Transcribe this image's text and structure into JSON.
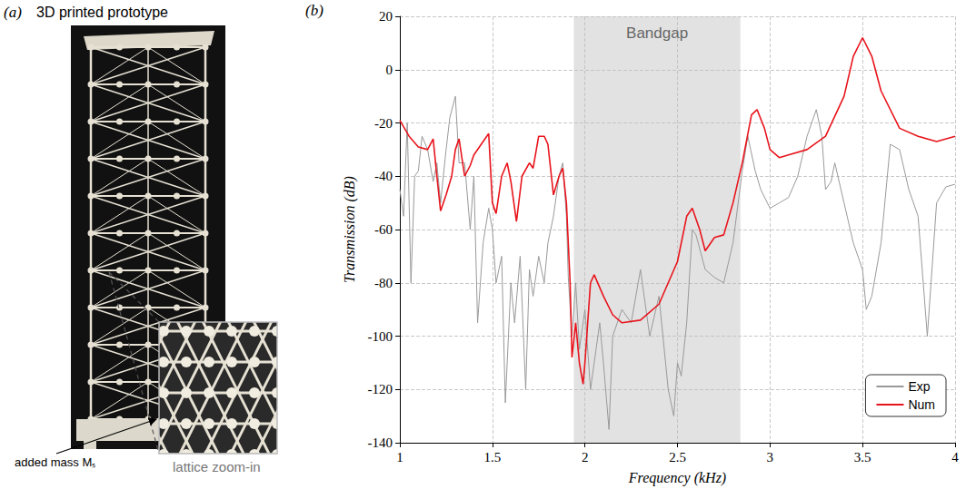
{
  "panel_a": {
    "label": "(a)",
    "title": "3D printed prototype",
    "annotations": [
      "added mass Mₛ",
      "lattice zoom-in"
    ]
  },
  "chart_data": {
    "type": "line",
    "panel": "(b)",
    "x_label": "Frequency (kHz)",
    "y_label": "Transmission (dB)",
    "xlim": [
      1,
      4
    ],
    "xticks": [
      1,
      1.5,
      2,
      2.5,
      3,
      3.5,
      4
    ],
    "ylim": [
      -140,
      20
    ],
    "yticks": [
      -140,
      -120,
      -100,
      -80,
      -60,
      -40,
      -20,
      0,
      20
    ],
    "grid": true,
    "legend": "lower right",
    "band": {
      "label": "Bandgap",
      "x": [
        1.94,
        2.84
      ]
    },
    "series": [
      {
        "name": "Exp",
        "color": "#999999",
        "x": [
          1.0,
          1.02,
          1.04,
          1.06,
          1.08,
          1.1,
          1.12,
          1.15,
          1.18,
          1.2,
          1.22,
          1.25,
          1.27,
          1.3,
          1.32,
          1.35,
          1.38,
          1.4,
          1.42,
          1.45,
          1.48,
          1.5,
          1.52,
          1.55,
          1.57,
          1.6,
          1.62,
          1.65,
          1.68,
          1.7,
          1.72,
          1.75,
          1.78,
          1.8,
          1.83,
          1.86,
          1.88,
          1.9,
          1.91,
          1.93,
          1.95,
          1.97,
          2.0,
          2.03,
          2.05,
          2.08,
          2.1,
          2.13,
          2.15,
          2.2,
          2.25,
          2.3,
          2.35,
          2.4,
          2.45,
          2.48,
          2.5,
          2.52,
          2.55,
          2.58,
          2.6,
          2.65,
          2.7,
          2.75,
          2.8,
          2.85,
          2.88,
          2.92,
          2.95,
          3.0,
          3.05,
          3.1,
          3.15,
          3.2,
          3.25,
          3.28,
          3.3,
          3.33,
          3.35,
          3.4,
          3.45,
          3.5,
          3.52,
          3.55,
          3.6,
          3.65,
          3.7,
          3.75,
          3.8,
          3.85,
          3.87,
          3.9,
          3.95,
          4.0
        ],
        "values": [
          -45,
          -55,
          -20,
          -80,
          -40,
          -38,
          -25,
          -30,
          -42,
          -35,
          -50,
          -30,
          -18,
          -10,
          -35,
          -35,
          -60,
          -40,
          -95,
          -65,
          -52,
          -60,
          -80,
          -70,
          -125,
          -80,
          -95,
          -70,
          -120,
          -75,
          -85,
          -70,
          -80,
          -65,
          -55,
          -40,
          -35,
          -55,
          -78,
          -100,
          -80,
          -105,
          -90,
          -120,
          -110,
          -95,
          -110,
          -135,
          -100,
          -90,
          -95,
          -75,
          -100,
          -85,
          -120,
          -130,
          -110,
          -115,
          -95,
          -60,
          -62,
          -75,
          -78,
          -80,
          -65,
          -38,
          -25,
          -38,
          -45,
          -52,
          -50,
          -48,
          -40,
          -25,
          -15,
          -25,
          -45,
          -42,
          -35,
          -50,
          -65,
          -75,
          -90,
          -85,
          -65,
          -28,
          -30,
          -45,
          -55,
          -100,
          -80,
          -50,
          -44,
          -43
        ]
      },
      {
        "name": "Num",
        "color": "#e8141c",
        "x": [
          1.0,
          1.05,
          1.1,
          1.15,
          1.18,
          1.2,
          1.22,
          1.25,
          1.28,
          1.3,
          1.32,
          1.35,
          1.38,
          1.4,
          1.45,
          1.48,
          1.5,
          1.52,
          1.55,
          1.58,
          1.6,
          1.63,
          1.66,
          1.7,
          1.72,
          1.75,
          1.78,
          1.8,
          1.83,
          1.86,
          1.88,
          1.9,
          1.92,
          1.93,
          1.95,
          1.97,
          1.99,
          2.0,
          2.03,
          2.05,
          2.1,
          2.15,
          2.2,
          2.3,
          2.4,
          2.5,
          2.55,
          2.58,
          2.62,
          2.65,
          2.7,
          2.75,
          2.8,
          2.85,
          2.9,
          2.93,
          2.97,
          3.0,
          3.05,
          3.1,
          3.2,
          3.3,
          3.4,
          3.45,
          3.5,
          3.55,
          3.6,
          3.7,
          3.8,
          3.9,
          4.0
        ],
        "values": [
          -19,
          -25,
          -29,
          -30,
          -26,
          -40,
          -53,
          -47,
          -40,
          -30,
          -26,
          -40,
          -36,
          -32,
          -27,
          -24,
          -50,
          -54,
          -40,
          -35,
          -42,
          -57,
          -40,
          -35,
          -37,
          -25,
          -25,
          -28,
          -47,
          -40,
          -37,
          -50,
          -80,
          -108,
          -95,
          -110,
          -118,
          -110,
          -80,
          -77,
          -85,
          -92,
          -95,
          -94,
          -88,
          -72,
          -55,
          -52,
          -60,
          -68,
          -63,
          -62,
          -50,
          -35,
          -17,
          -15,
          -22,
          -30,
          -33,
          -32,
          -30,
          -25,
          -10,
          5,
          12,
          5,
          -8,
          -22,
          -25,
          -27,
          -25
        ]
      }
    ]
  }
}
